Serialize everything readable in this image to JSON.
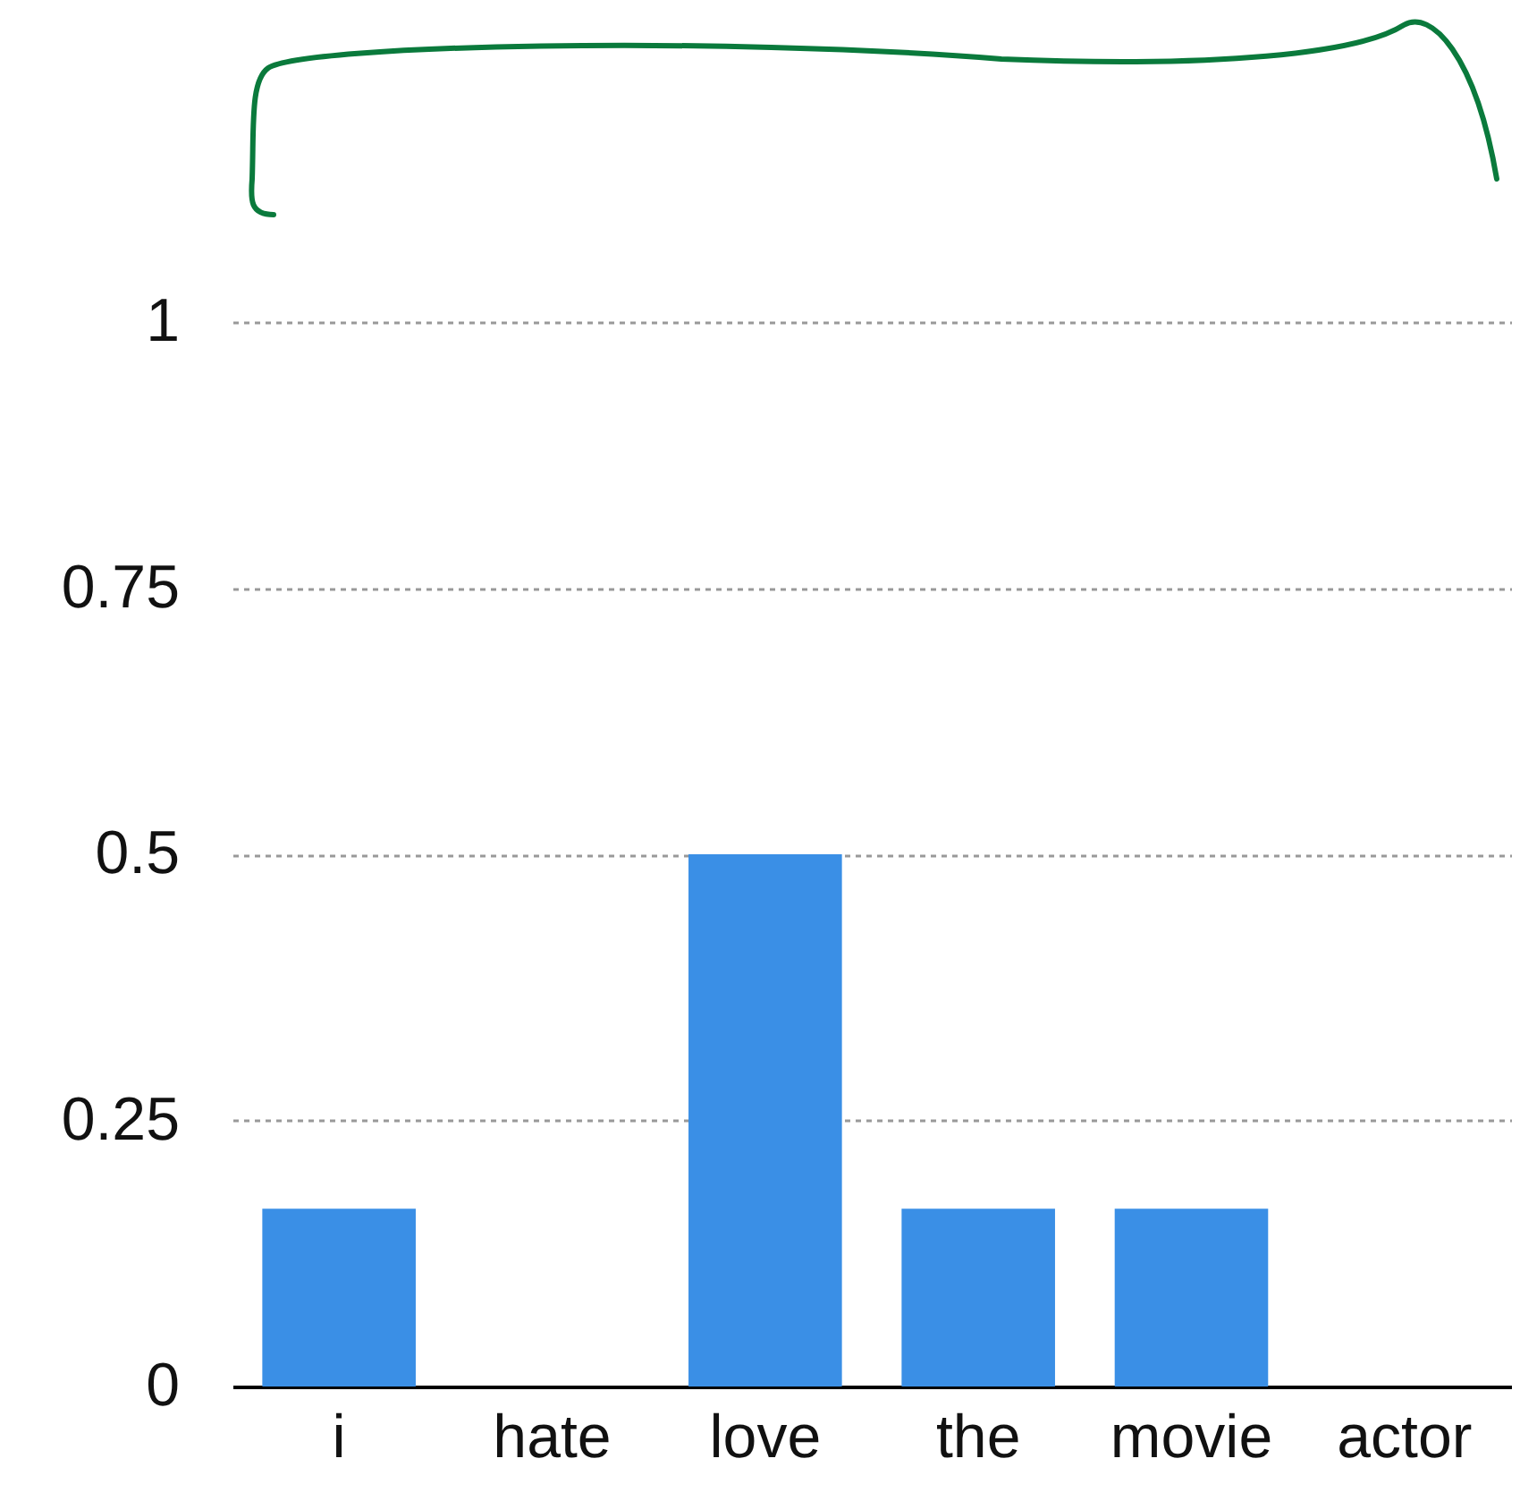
{
  "chart_data": {
    "type": "bar",
    "categories": [
      "i",
      "hate",
      "love",
      "the",
      "movie",
      "actor"
    ],
    "values": [
      0.167,
      0,
      0.5,
      0.167,
      0.167,
      0
    ],
    "color": "#3a8fe6",
    "ylim": [
      0,
      1
    ],
    "yticks": [
      0,
      0.25,
      0.5,
      0.75,
      1
    ],
    "grid": "y"
  }
}
